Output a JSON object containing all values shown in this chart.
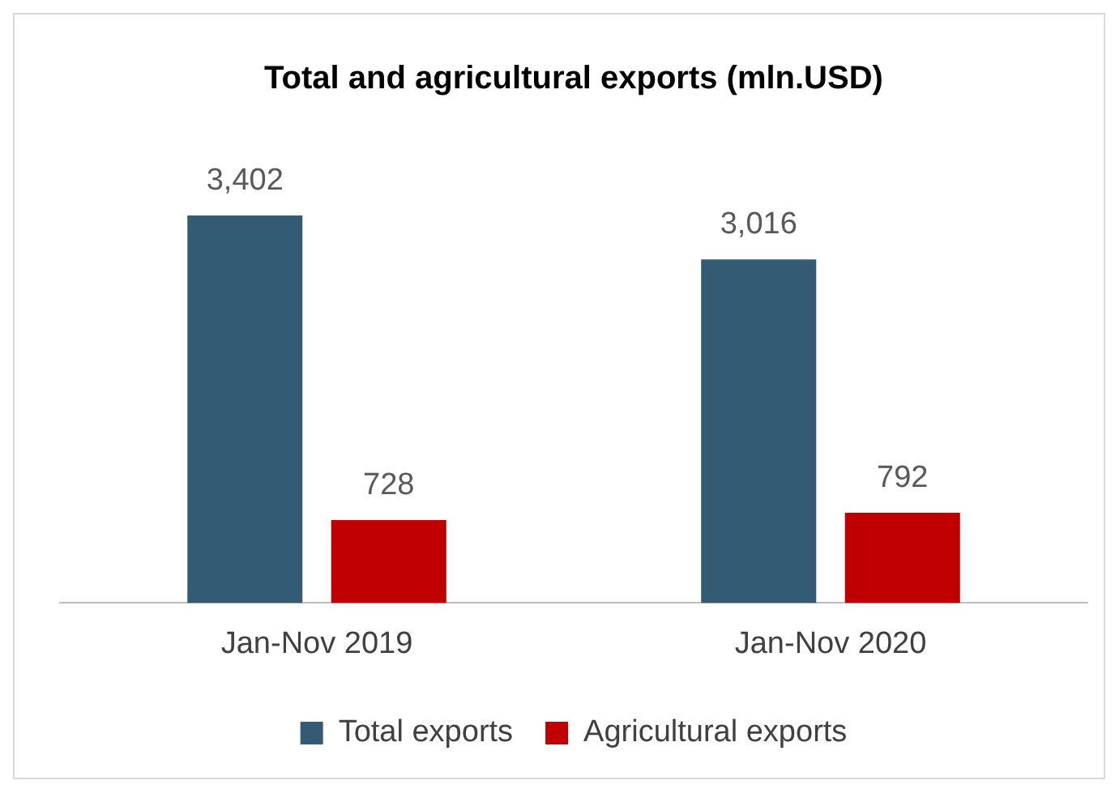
{
  "chart_data": {
    "type": "bar",
    "title": "Total and agricultural exports (mln.USD)",
    "categories": [
      "Jan-Nov 2019",
      "Jan-Nov 2020"
    ],
    "series": [
      {
        "name": "Total exports",
        "color": "#335b74",
        "values": [
          3402,
          3016
        ],
        "value_labels": [
          "3,402",
          "3,016"
        ]
      },
      {
        "name": "Agricultural exports",
        "color": "#c00000",
        "values": [
          728,
          792
        ],
        "value_labels": [
          "728",
          "792"
        ]
      }
    ],
    "grid": false,
    "legend": "bottom",
    "tick_labels": "x"
  }
}
